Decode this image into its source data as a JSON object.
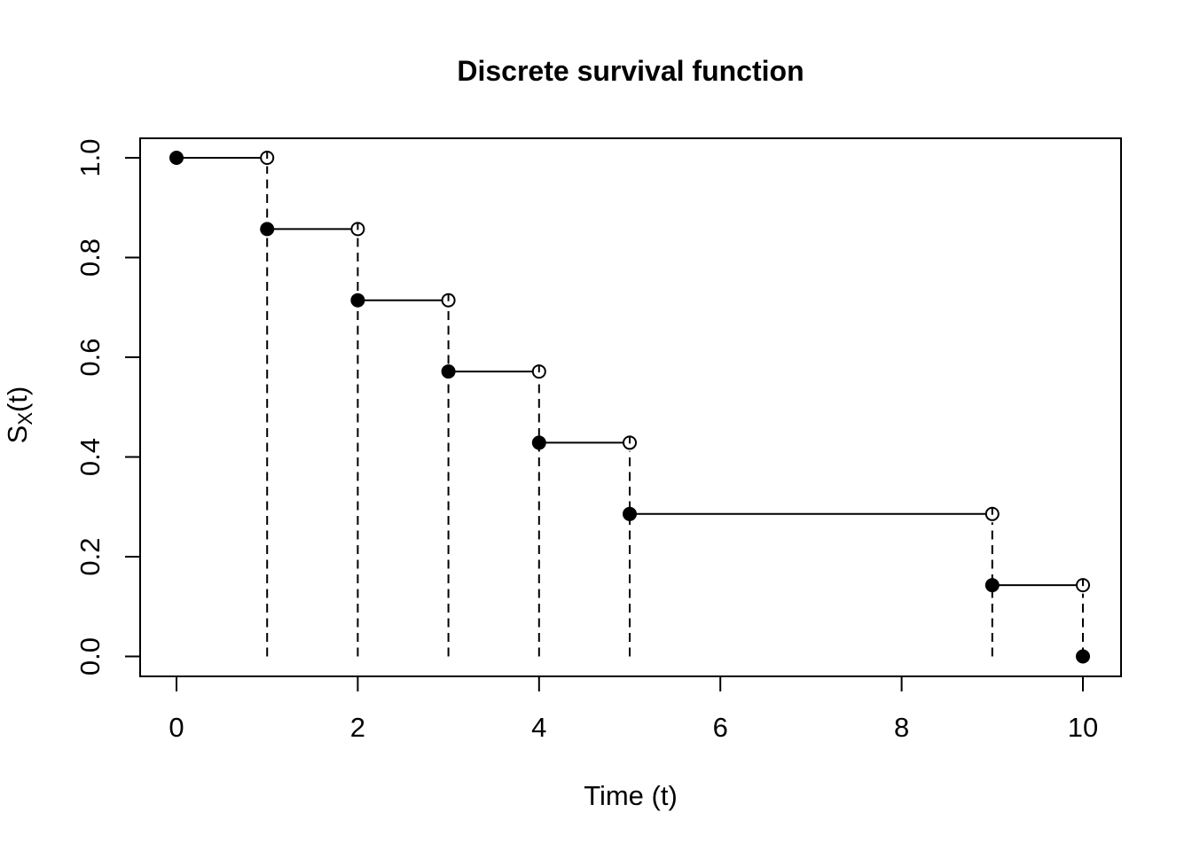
{
  "chart_data": {
    "type": "line",
    "subtype": "step-function (right-continuous discrete survival curve, R base graphics style)",
    "title": "Discrete survival function",
    "xlabel": "Time (t)",
    "ylabel": "S_X(t)",
    "ylabel_parts": {
      "main": "S",
      "subscript": "X",
      "suffix": "(t)"
    },
    "x_ticks": [
      "0",
      "2",
      "4",
      "6",
      "8",
      "10"
    ],
    "x_tick_values": [
      0,
      2,
      4,
      6,
      8,
      10
    ],
    "y_ticks": [
      "0.0",
      "0.2",
      "0.4",
      "0.6",
      "0.8",
      "1.0"
    ],
    "y_tick_values": [
      0,
      0.2,
      0.4,
      0.6,
      0.8,
      1.0
    ],
    "xlim": [
      -0.4,
      10.4
    ],
    "ylim": [
      -0.04,
      1.04
    ],
    "grid": false,
    "legend": false,
    "colors": {
      "foreground": "#000000",
      "background": "#ffffff"
    },
    "steps": [
      {
        "t_start": 0,
        "t_end": 1,
        "survival": 1.0
      },
      {
        "t_start": 1,
        "t_end": 2,
        "survival": 0.8571
      },
      {
        "t_start": 2,
        "t_end": 3,
        "survival": 0.7143
      },
      {
        "t_start": 3,
        "t_end": 4,
        "survival": 0.5714
      },
      {
        "t_start": 4,
        "t_end": 5,
        "survival": 0.4286
      },
      {
        "t_start": 5,
        "t_end": 9,
        "survival": 0.2857
      },
      {
        "t_start": 9,
        "t_end": 10,
        "survival": 0.1429
      }
    ],
    "final_point": {
      "t": 10,
      "survival": 0
    },
    "drop_line_times": [
      1,
      2,
      3,
      4,
      5,
      9,
      10
    ],
    "marker_convention": {
      "left_endpoint": "filled circle (value attained)",
      "right_endpoint": "open circle (limit not attained)",
      "drop": "dashed vertical line down to 0"
    }
  }
}
